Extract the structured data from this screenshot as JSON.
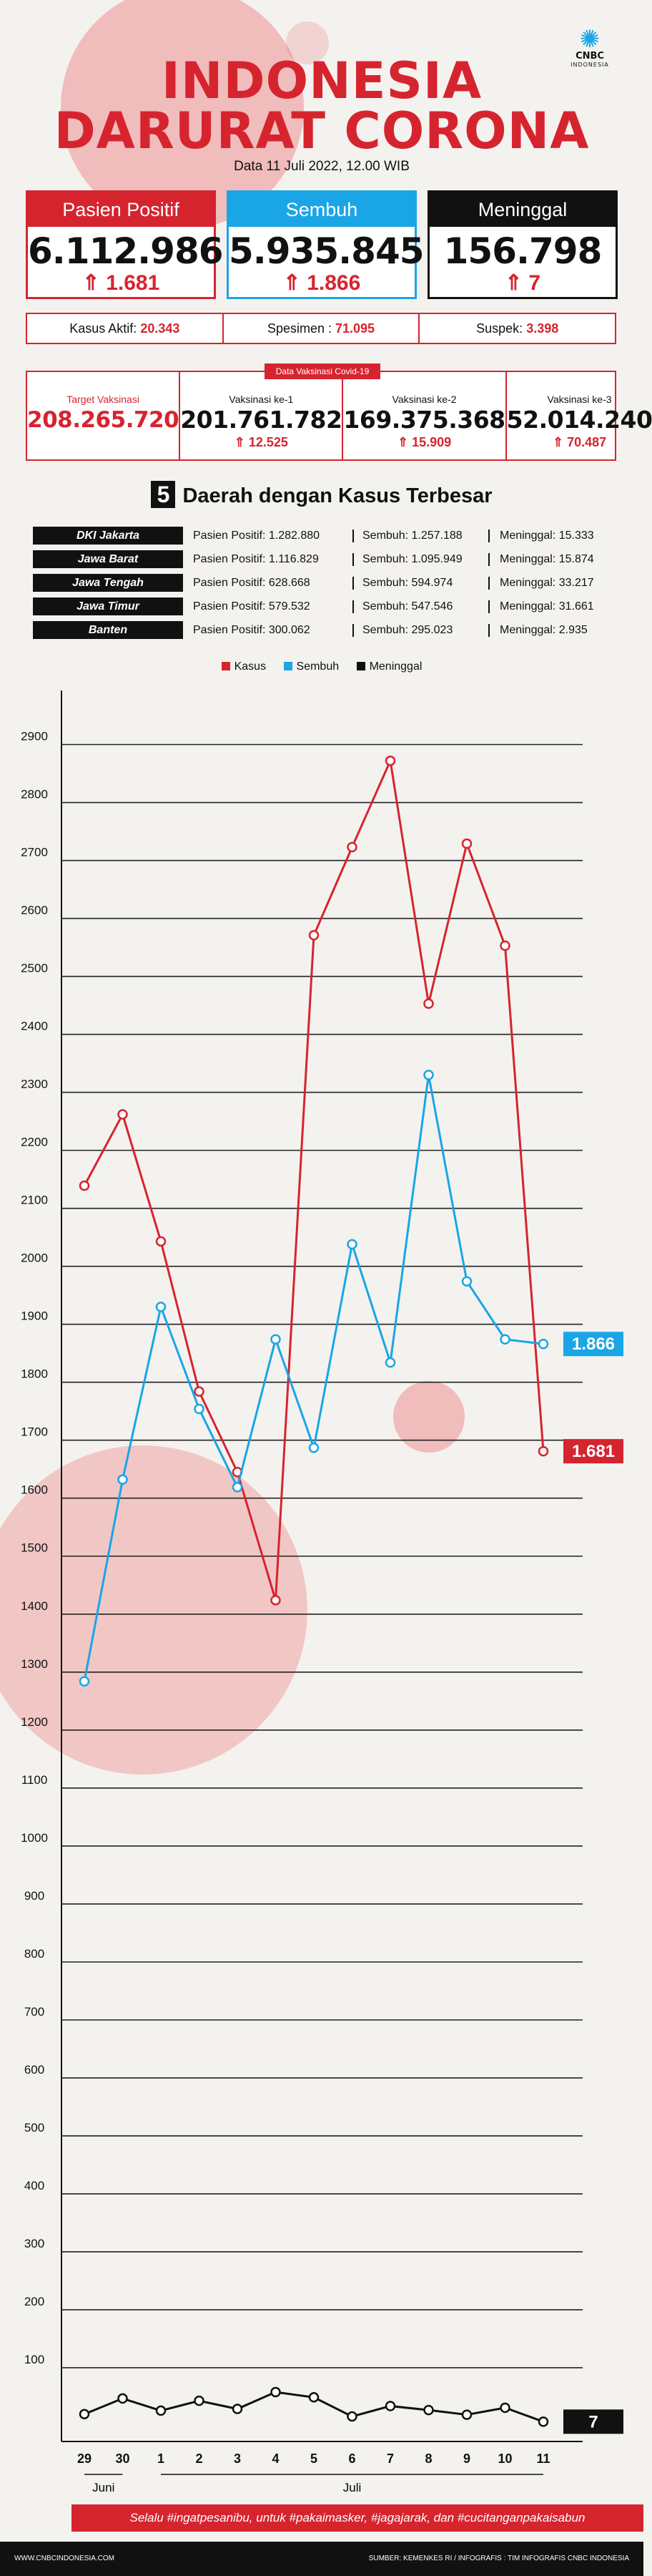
{
  "header": {
    "title_line1": "INDONESIA",
    "title_line2": "DARURAT CORONA",
    "date": "Data 11 Juli 2022, 12.00 WIB",
    "logo_text": "CNBC",
    "logo_sub": "INDONESIA"
  },
  "stats": [
    {
      "label": "Pasien Positif",
      "value": "6.112.986",
      "delta": "1.681",
      "color": "#d6242f",
      "icon": "double-chevron-up-icon"
    },
    {
      "label": "Sembuh",
      "value": "5.935.845",
      "delta": "1.866",
      "color": "#1aa5e6",
      "icon": "double-chevron-up-icon"
    },
    {
      "label": "Meninggal",
      "value": "156.798",
      "delta": "7",
      "color": "#111111",
      "icon": "double-chevron-up-icon"
    }
  ],
  "summary": {
    "aktif_label": "Kasus Aktif:",
    "aktif_value": "20.343",
    "spesimen_label": "Spesimen :",
    "spesimen_value": "71.095",
    "suspek_label": "Suspek:",
    "suspek_value": "3.398"
  },
  "vaksinasi": {
    "tag": "Data Vaksinasi Covid-19",
    "target_label": "Target Vaksinasi",
    "target_value": "208.265.720",
    "doses": [
      {
        "label": "Vaksinasi ke-1",
        "value": "201.761.782",
        "delta": "12.525"
      },
      {
        "label": "Vaksinasi ke-2",
        "value": "169.375.368",
        "delta": "15.909"
      },
      {
        "label": "Vaksinasi ke-3",
        "value": "52.014.240",
        "delta": "70.487"
      }
    ]
  },
  "regions": {
    "count": "5",
    "title": "Daerah dengan Kasus Terbesar",
    "pos_label": "Pasien Positif:",
    "sem_label": "Sembuh:",
    "men_label": "Meninggal:",
    "rows": [
      {
        "name": "DKI Jakarta",
        "positif": "1.282.880",
        "sembuh": "1.257.188",
        "meninggal": "15.333"
      },
      {
        "name": "Jawa Barat",
        "positif": "1.116.829",
        "sembuh": "1.095.949",
        "meninggal": "15.874"
      },
      {
        "name": "Jawa Tengah",
        "positif": "628.668",
        "sembuh": "594.974",
        "meninggal": "33.217"
      },
      {
        "name": "Jawa Timur",
        "positif": "579.532",
        "sembuh": "547.546",
        "meninggal": "31.661"
      },
      {
        "name": "Banten",
        "positif": "300.062",
        "sembuh": "295.023",
        "meninggal": "2.935"
      }
    ]
  },
  "chart_data": {
    "type": "line",
    "x": [
      "29",
      "30",
      "1",
      "2",
      "3",
      "4",
      "5",
      "6",
      "7",
      "8",
      "9",
      "10",
      "11"
    ],
    "month_labels": [
      "Juni",
      "Juli"
    ],
    "series": [
      {
        "name": "Kasus",
        "color": "#d6242f",
        "values": [
          2139,
          2262,
          2043,
          1784,
          1645,
          1424,
          2571,
          2723,
          2872,
          2453,
          2729,
          2553,
          1681
        ],
        "end_label": "1.681"
      },
      {
        "name": "Sembuh",
        "color": "#1aa5e6",
        "values": [
          1284,
          1632,
          1930,
          1754,
          1619,
          1874,
          1687,
          2038,
          1834,
          2330,
          1974,
          1874,
          1866
        ],
        "end_label": "1.866"
      },
      {
        "name": "Meninggal",
        "color": "#111111",
        "values": [
          20,
          47,
          26,
          43,
          29,
          58,
          49,
          16,
          34,
          27,
          19,
          31,
          7
        ],
        "end_label": "7"
      }
    ],
    "yticks": [
      100,
      200,
      300,
      400,
      500,
      600,
      700,
      800,
      900,
      1000,
      1100,
      1200,
      1300,
      1400,
      1500,
      1600,
      1700,
      1800,
      1900,
      2000,
      2100,
      2200,
      2300,
      2400,
      2500,
      2600,
      2700,
      2800,
      2900
    ],
    "ylim": [
      0,
      2950
    ],
    "grid": true,
    "legend_position": "top-center"
  },
  "footer": {
    "banner": "Selalu #ingatpesanibu, untuk #pakaimasker, #jagajarak, dan #cucitanganpakaisabun",
    "website": "WWW.CNBCINDONESIA.COM",
    "source": "SUMBER: KEMENKES RI / INFOGRAFIS : TIM INFOGRAFIS CNBC INDONESIA"
  }
}
